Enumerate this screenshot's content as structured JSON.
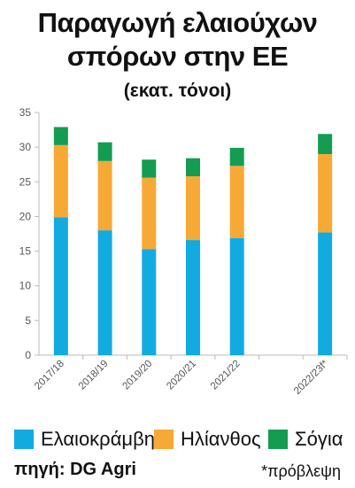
{
  "title_line1": "Παραγωγή ελαιούχων",
  "title_line2": "σπόρων στην ΕΕ",
  "subtitle": "(εκατ. τόνοι)",
  "source_label": "πηγή:",
  "source_value": "DG Agri",
  "footnote": "*πρόβλεψη",
  "colors": {
    "rapeseed": "#12abe0",
    "sunflower": "#f7a935",
    "soybean": "#139c52",
    "axis": "#bbbbbb",
    "tick": "#555555"
  },
  "chart_data": {
    "type": "bar",
    "stacked": true,
    "categories": [
      "2017/18",
      "2018/19",
      "2019/20",
      "2020/21",
      "2021/22",
      "",
      "2022/23f*"
    ],
    "series": [
      {
        "name": "Ελαιοκράμβη",
        "color": "#12abe0",
        "values": [
          19.9,
          18.0,
          15.3,
          16.6,
          16.9,
          null,
          17.7
        ]
      },
      {
        "name": "Ηλίανθος",
        "color": "#f7a935",
        "values": [
          10.4,
          10.0,
          10.3,
          9.2,
          10.4,
          null,
          11.3
        ]
      },
      {
        "name": "Σόγια",
        "color": "#139c52",
        "values": [
          2.6,
          2.7,
          2.6,
          2.6,
          2.6,
          null,
          2.9
        ]
      }
    ],
    "yticks": [
      0,
      5,
      10,
      15,
      20,
      25,
      30,
      35
    ],
    "ylim": [
      0,
      35
    ],
    "grid": false,
    "legend": "bottom",
    "xlabel": "",
    "ylabel": ""
  }
}
